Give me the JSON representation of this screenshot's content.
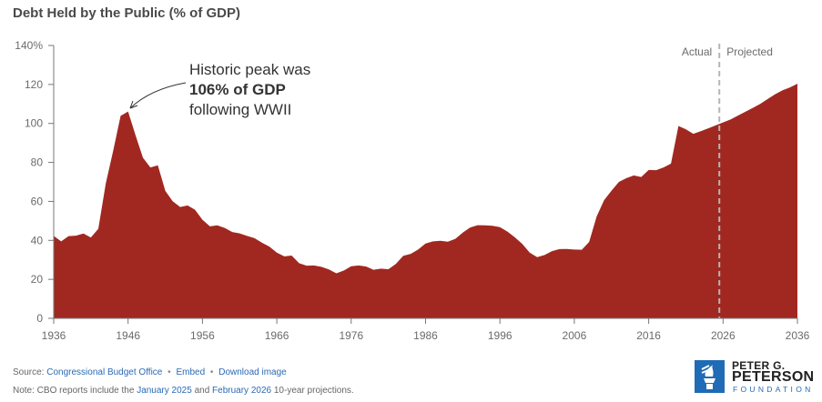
{
  "chart_data": {
    "type": "area",
    "title": "Debt Held by the Public (% of GDP)",
    "xlim": [
      1936,
      2036
    ],
    "ylim": [
      0,
      140
    ],
    "x_ticks": [
      "1936",
      "1946",
      "1956",
      "1966",
      "1976",
      "1986",
      "1996",
      "2006",
      "2016",
      "2026",
      "2036"
    ],
    "y_ticks": [
      "0",
      "20",
      "40",
      "60",
      "80",
      "100",
      "120",
      "140%"
    ],
    "y_tick_values": [
      0,
      20,
      40,
      60,
      80,
      100,
      120,
      140
    ],
    "grid": false,
    "color": "#a12820",
    "divider": {
      "year": 2025.5,
      "left_label": "Actual",
      "right_label": "Projected"
    },
    "annotation": {
      "line1": "Historic peak was",
      "highlight": "106% of GDP",
      "line3": "following WWII",
      "highlight_color": "#a12820",
      "point_year": 1946,
      "point_value": 106
    },
    "x": [
      1936,
      1937,
      1938,
      1939,
      1940,
      1941,
      1942,
      1943,
      1944,
      1945,
      1946,
      1947,
      1948,
      1949,
      1950,
      1951,
      1952,
      1953,
      1954,
      1955,
      1956,
      1957,
      1958,
      1959,
      1960,
      1961,
      1962,
      1963,
      1964,
      1965,
      1966,
      1967,
      1968,
      1969,
      1970,
      1971,
      1972,
      1973,
      1974,
      1975,
      1976,
      1977,
      1978,
      1979,
      1980,
      1981,
      1982,
      1983,
      1984,
      1985,
      1986,
      1987,
      1988,
      1989,
      1990,
      1991,
      1992,
      1993,
      1994,
      1995,
      1996,
      1997,
      1998,
      1999,
      2000,
      2001,
      2002,
      2003,
      2004,
      2005,
      2006,
      2007,
      2008,
      2009,
      2010,
      2011,
      2012,
      2013,
      2014,
      2015,
      2016,
      2017,
      2018,
      2019,
      2020,
      2021,
      2022,
      2023,
      2024,
      2025,
      2026,
      2027,
      2028,
      2029,
      2030,
      2031,
      2032,
      2033,
      2034,
      2035,
      2036
    ],
    "values": [
      42.3,
      39.5,
      42.2,
      42.4,
      43.5,
      41.5,
      45.9,
      69.2,
      86.1,
      103.9,
      106.1,
      93.9,
      82.4,
      77.4,
      78.5,
      65.4,
      60.1,
      57.1,
      57.9,
      55.7,
      50.6,
      47.2,
      47.7,
      46.4,
      44.3,
      43.6,
      42.3,
      41.1,
      38.8,
      36.8,
      33.7,
      31.8,
      32.2,
      28.3,
      27.0,
      27.1,
      26.4,
      25.1,
      23.1,
      24.5,
      26.7,
      27.1,
      26.6,
      24.9,
      25.5,
      25.2,
      27.9,
      32.1,
      33.1,
      35.3,
      38.4,
      39.5,
      39.8,
      39.3,
      40.8,
      44.0,
      46.6,
      47.8,
      47.7,
      47.5,
      46.8,
      44.5,
      41.6,
      38.2,
      33.7,
      31.4,
      32.5,
      34.5,
      35.5,
      35.6,
      35.3,
      35.2,
      39.2,
      52.2,
      60.6,
      65.5,
      70.0,
      71.9,
      73.3,
      72.5,
      76.1,
      76.0,
      77.4,
      79.4,
      98.7,
      97.0,
      94.7,
      96.0,
      97.5,
      99.0,
      100.5,
      102.0,
      104.0,
      106.0,
      108.0,
      110.0,
      112.5,
      115.0,
      117.0,
      118.5,
      120.4
    ]
  },
  "footer": {
    "source_label": "Source:",
    "source_link": "Congressional Budget Office",
    "embed": "Embed",
    "download": "Download image",
    "sep": "•",
    "note_pre": "Note: CBO reports include the",
    "note_link1": "January 2025",
    "note_mid": "and",
    "note_link2": "February 2026",
    "note_post": "10-year projections."
  },
  "logo": {
    "line1": "PETER G.",
    "line2": "PETERSON",
    "line3": "FOUNDATION",
    "color": "#1f6bb5"
  }
}
